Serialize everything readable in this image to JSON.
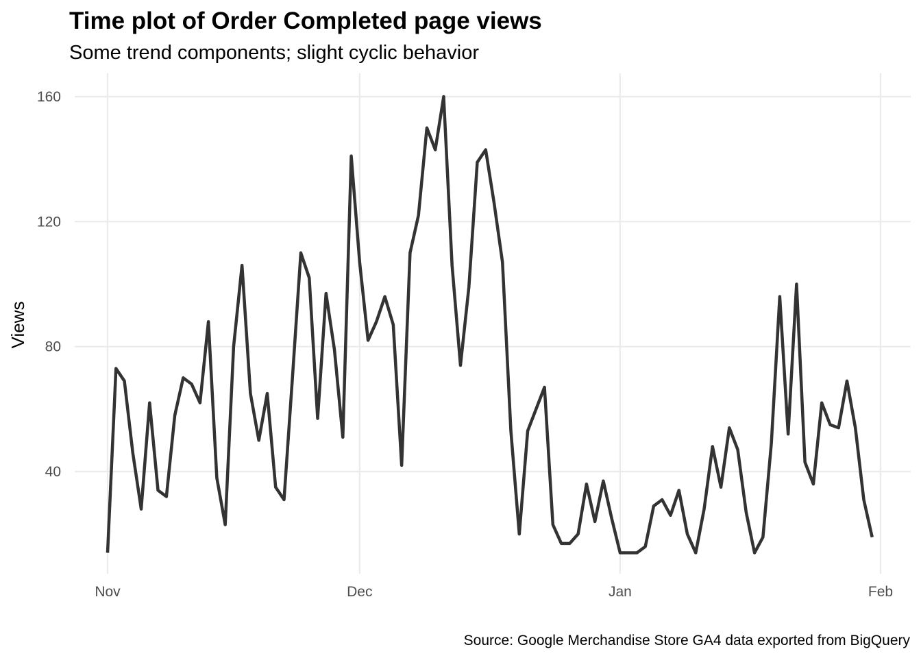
{
  "chart_data": {
    "type": "line",
    "title": "Time plot of Order Completed page views",
    "subtitle": "Some trend components; slight cyclic behavior",
    "xlabel": "",
    "ylabel": "Views",
    "caption": "Source: Google Merchandise Store GA4 data exported from BigQuery",
    "grid": true,
    "legend": "none",
    "x_start_date": "2020-11-01",
    "x_unit": "day",
    "xlim": [
      0,
      93
    ],
    "ylim": [
      10,
      167
    ],
    "x_ticks": [
      {
        "label": "Nov",
        "value": 0
      },
      {
        "label": "Dec",
        "value": 30
      },
      {
        "label": "Jan",
        "value": 61
      },
      {
        "label": "Feb",
        "value": 92
      }
    ],
    "y_ticks": [
      {
        "label": "40",
        "value": 40
      },
      {
        "label": "80",
        "value": 80
      },
      {
        "label": "120",
        "value": 120
      },
      {
        "label": "160",
        "value": 160
      }
    ],
    "series": [
      {
        "name": "Views",
        "color": "#333333",
        "values": [
          14,
          73,
          69,
          46,
          28,
          62,
          34,
          32,
          58,
          70,
          68,
          62,
          88,
          38,
          23,
          80,
          106,
          65,
          50,
          65,
          35,
          31,
          70,
          110,
          102,
          57,
          97,
          79,
          51,
          141,
          107,
          82,
          88,
          96,
          87,
          42,
          110,
          122,
          150,
          143,
          160,
          106,
          74,
          99,
          139,
          143,
          126,
          107,
          53,
          20,
          53,
          60,
          67,
          23,
          17,
          17,
          20,
          36,
          24,
          37,
          25,
          14,
          14,
          14,
          16,
          29,
          31,
          26,
          34,
          20,
          14,
          28,
          48,
          35,
          54,
          47,
          27,
          14,
          19,
          49,
          96,
          52,
          100,
          43,
          36,
          62,
          55,
          54,
          69,
          54,
          31,
          19
        ]
      }
    ]
  }
}
